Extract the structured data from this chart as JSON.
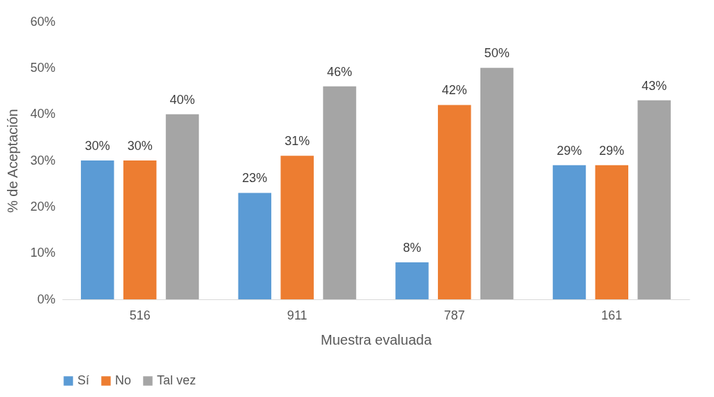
{
  "chart_data": {
    "type": "bar",
    "xlabel": "Muestra evaluada",
    "ylabel": "% de Aceptación",
    "categories": [
      "516",
      "911",
      "787",
      "161"
    ],
    "series": [
      {
        "name": "Sí",
        "color": "#5b9bd5",
        "values": [
          30,
          23,
          8,
          29
        ],
        "value_labels": [
          "30%",
          "23%",
          "8%",
          "29%"
        ]
      },
      {
        "name": "No",
        "color": "#ed7d31",
        "values": [
          30,
          31,
          42,
          29
        ],
        "value_labels": [
          "30%",
          "31%",
          "42%",
          "29%"
        ]
      },
      {
        "name": "Tal vez",
        "color": "#a5a5a5",
        "values": [
          40,
          46,
          50,
          43
        ],
        "value_labels": [
          "40%",
          "46%",
          "50%",
          "43%"
        ]
      }
    ],
    "ylim": [
      0,
      60
    ],
    "yticks": [
      {
        "value": 0,
        "label": "0%"
      },
      {
        "value": 10,
        "label": "10%"
      },
      {
        "value": 20,
        "label": "20%"
      },
      {
        "value": 30,
        "label": "30%"
      },
      {
        "value": 40,
        "label": "40%"
      },
      {
        "value": 50,
        "label": "50%"
      },
      {
        "value": 60,
        "label": "60%"
      }
    ],
    "grid": false,
    "legend": "bottom"
  }
}
